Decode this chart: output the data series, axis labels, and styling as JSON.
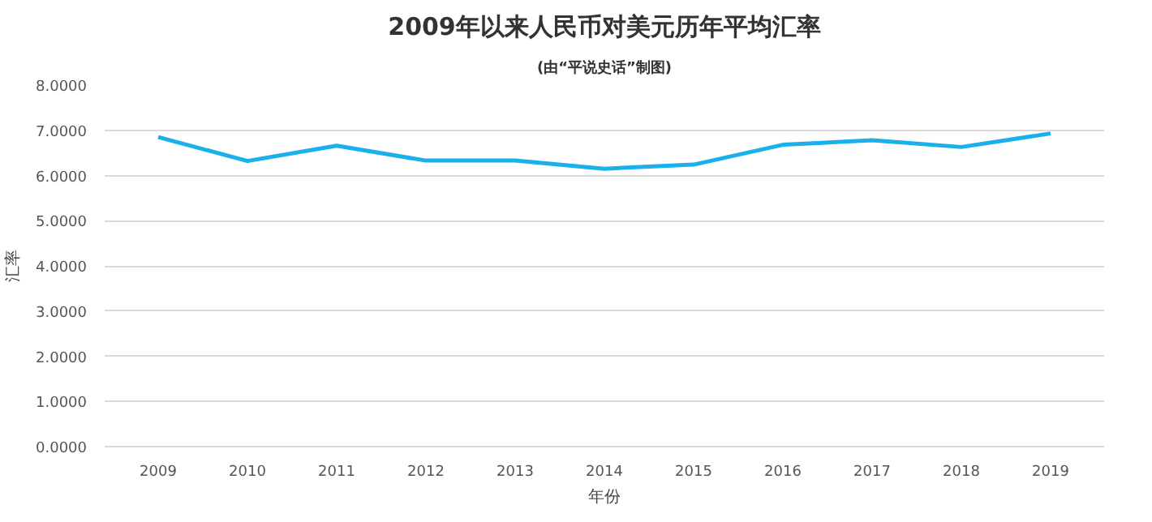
{
  "chart_data": {
    "type": "line",
    "title": "2009年以来人民币对美元历年平均汇率",
    "subtitle": "(由“平说史话”制图)",
    "xlabel": "年份",
    "ylabel": "汇率",
    "categories": [
      "2009",
      "2010",
      "2011",
      "2012",
      "2013",
      "2014",
      "2015",
      "2016",
      "2017",
      "2018",
      "2019"
    ],
    "series": [
      {
        "color": "#1ab0ec",
        "values": [
          6.85,
          6.32,
          6.66,
          6.33,
          6.33,
          6.15,
          6.24,
          6.68,
          6.78,
          6.63,
          6.93
        ]
      }
    ],
    "ylim": [
      0,
      8
    ],
    "yticks": [
      {
        "value": 0,
        "label": "0.0000"
      },
      {
        "value": 1,
        "label": "1.0000"
      },
      {
        "value": 2,
        "label": "2.0000"
      },
      {
        "value": 3,
        "label": "3.0000"
      },
      {
        "value": 4,
        "label": "4.0000"
      },
      {
        "value": 5,
        "label": "5.0000"
      },
      {
        "value": 6,
        "label": "6.0000"
      },
      {
        "value": 7,
        "label": "7.0000"
      },
      {
        "value": 8,
        "label": "8.0000"
      }
    ],
    "grid": "y",
    "marker": "none",
    "line_style": "solid"
  }
}
